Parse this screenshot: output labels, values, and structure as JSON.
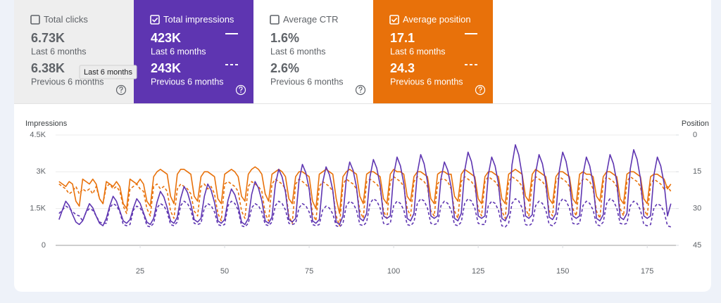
{
  "cards": [
    {
      "label": "Total clicks",
      "checked": false,
      "color": "#eeeeee",
      "current": {
        "value": "6.73K",
        "period": "Last 6 months"
      },
      "previous": {
        "value": "6.38K",
        "period": "Previous 6 months"
      }
    },
    {
      "label": "Total impressions",
      "checked": true,
      "color": "#5e35b1",
      "current": {
        "value": "423K",
        "period": "Last 6 months"
      },
      "previous": {
        "value": "243K",
        "period": "Previous 6 months"
      }
    },
    {
      "label": "Average CTR",
      "checked": false,
      "color": "#ffffff",
      "current": {
        "value": "1.6%",
        "period": "Last 6 months"
      },
      "previous": {
        "value": "2.6%",
        "period": "Previous 6 months"
      }
    },
    {
      "label": "Average position",
      "checked": true,
      "color": "#e8710a",
      "current": {
        "value": "17.1",
        "period": "Last 6 months"
      },
      "previous": {
        "value": "24.3",
        "period": "Previous 6 months"
      }
    }
  ],
  "tooltip": "Last 6 months",
  "chart_data": {
    "type": "line",
    "y_label": "Impressions",
    "y2_label": "Position",
    "xlim": [
      0,
      183.5
    ],
    "xticks": [
      25,
      50,
      75,
      100,
      125,
      150,
      175
    ],
    "ylim": [
      0,
      4500
    ],
    "yticks": [
      0,
      {
        "value": 1500,
        "label": "1.5K"
      },
      {
        "value": 3000,
        "label": "3K"
      },
      {
        "value": 4500,
        "label": "4.5K"
      }
    ],
    "y2lim": [
      45,
      0
    ],
    "y2ticks": [
      45,
      30,
      15,
      0
    ],
    "grid": true,
    "x": [
      1,
      2,
      3,
      4,
      5,
      6,
      7,
      8,
      9,
      10,
      11,
      12,
      13,
      14,
      15,
      16,
      17,
      18,
      19,
      20,
      21,
      22,
      23,
      24,
      25,
      26,
      27,
      28,
      29,
      30,
      31,
      32,
      33,
      34,
      35,
      36,
      37,
      38,
      39,
      40,
      41,
      42,
      43,
      44,
      45,
      46,
      47,
      48,
      49,
      50,
      51,
      52,
      53,
      54,
      55,
      56,
      57,
      58,
      59,
      60,
      61,
      62,
      63,
      64,
      65,
      66,
      67,
      68,
      69,
      70,
      71,
      72,
      73,
      74,
      75,
      76,
      77,
      78,
      79,
      80,
      81,
      82,
      83,
      84,
      85,
      86,
      87,
      88,
      89,
      90,
      91,
      92,
      93,
      94,
      95,
      96,
      97,
      98,
      99,
      100,
      101,
      102,
      103,
      104,
      105,
      106,
      107,
      108,
      109,
      110,
      111,
      112,
      113,
      114,
      115,
      116,
      117,
      118,
      119,
      120,
      121,
      122,
      123,
      124,
      125,
      126,
      127,
      128,
      129,
      130,
      131,
      132,
      133,
      134,
      135,
      136,
      137,
      138,
      139,
      140,
      141,
      142,
      143,
      144,
      145,
      146,
      147,
      148,
      149,
      150,
      151,
      152,
      153,
      154,
      155,
      156,
      157,
      158,
      159,
      160,
      161,
      162,
      163,
      164,
      165,
      166,
      167,
      168,
      169,
      170,
      171,
      172,
      173,
      174,
      175,
      176,
      177,
      178,
      179,
      180,
      181,
      182
    ],
    "series": [
      {
        "name": "Total impressions",
        "period": "previous",
        "color": "#5e35b1",
        "dashed": true,
        "axis": "y",
        "values": [
          1300,
          1440,
          1600,
          1520,
          1380,
          1250,
          1200,
          1000,
          1350,
          1500,
          1430,
          1200,
          950,
          900,
          900,
          1530,
          1700,
          1620,
          1360,
          850,
          800,
          850,
          1440,
          1600,
          1520,
          1280,
          800,
          750,
          900,
          1530,
          1700,
          1620,
          1360,
          850,
          800,
          950,
          1620,
          1800,
          1710,
          1440,
          900,
          850,
          900,
          1530,
          1700,
          1620,
          1360,
          850,
          800,
          850,
          1620,
          1800,
          1710,
          1440,
          800,
          750,
          900,
          1530,
          1700,
          1620,
          1360,
          850,
          800,
          950,
          1620,
          1800,
          1710,
          1440,
          900,
          850,
          900,
          1530,
          1700,
          1620,
          1360,
          850,
          800,
          850,
          1440,
          1600,
          1520,
          1280,
          800,
          750,
          900,
          1620,
          1800,
          1710,
          1440,
          850,
          800,
          950,
          1710,
          1900,
          1810,
          1520,
          900,
          850,
          900,
          1620,
          1800,
          1710,
          1440,
          850,
          800,
          950,
          1710,
          1900,
          1810,
          1520,
          900,
          850,
          900,
          1620,
          1800,
          1710,
          1440,
          850,
          800,
          950,
          1710,
          1900,
          1810,
          1520,
          900,
          850,
          850,
          1620,
          1800,
          1710,
          1440,
          800,
          750,
          900,
          1710,
          1900,
          1810,
          1520,
          850,
          800,
          900,
          1620,
          1800,
          1710,
          1440,
          850,
          800,
          950,
          1710,
          1900,
          1810,
          1520,
          900,
          850,
          900,
          1620,
          1800,
          1710,
          1440,
          850,
          800,
          950,
          1710,
          1900,
          1810,
          1520,
          900,
          850,
          900,
          1620,
          1800,
          1710,
          1440,
          850,
          800,
          850,
          1530,
          1700,
          1620,
          1360,
          800,
          750
        ]
      },
      {
        "name": "Average position",
        "period": "previous",
        "color": "#e8710a",
        "dashed": true,
        "axis": "y2",
        "values": [
          20,
          21,
          22,
          24,
          23,
          21,
          24,
          22,
          23,
          22,
          24,
          21,
          26,
          28,
          21,
          20,
          22,
          21,
          23,
          29,
          32,
          22,
          21,
          20,
          22,
          23,
          30,
          33,
          21,
          20,
          22,
          21,
          23,
          31,
          34,
          22,
          20,
          21,
          22,
          24,
          31,
          33,
          21,
          20,
          22,
          21,
          24,
          32,
          35,
          20,
          19,
          20,
          21,
          23,
          31,
          34,
          21,
          19,
          20,
          21,
          23,
          32,
          35,
          20,
          18,
          19,
          20,
          22,
          33,
          36,
          20,
          18,
          19,
          20,
          22,
          32,
          35,
          21,
          19,
          20,
          21,
          23,
          33,
          37,
          20,
          18,
          19,
          20,
          22,
          31,
          34,
          19,
          18,
          19,
          20,
          22,
          31,
          34,
          19,
          17,
          18,
          19,
          21,
          30,
          33,
          19,
          17,
          18,
          19,
          21,
          31,
          33,
          20,
          18,
          18,
          19,
          22,
          31,
          34,
          19,
          17,
          18,
          19,
          21,
          30,
          33,
          19,
          17,
          18,
          19,
          21,
          31,
          34,
          19,
          17,
          18,
          19,
          21,
          30,
          33,
          19,
          17,
          18,
          19,
          21,
          31,
          33,
          19,
          17,
          18,
          19,
          21,
          30,
          33,
          20,
          18,
          18,
          19,
          22,
          31,
          34,
          19,
          17,
          18,
          19,
          21,
          30,
          33,
          19,
          17,
          18,
          19,
          21,
          30,
          33,
          20,
          18,
          19,
          20,
          22,
          21,
          23
        ]
      },
      {
        "name": "Average position",
        "period": "current",
        "color": "#e8710a",
        "dashed": false,
        "axis": "y2",
        "values": [
          19,
          20,
          21,
          19,
          20,
          27,
          29,
          18,
          19,
          20,
          18,
          20,
          26,
          28,
          19,
          20,
          21,
          19,
          21,
          28,
          30,
          18,
          19,
          20,
          18,
          20,
          27,
          29,
          17,
          15,
          14,
          15,
          16,
          25,
          28,
          16,
          14,
          14,
          15,
          16,
          25,
          27,
          17,
          15,
          15,
          16,
          17,
          26,
          28,
          16,
          15,
          14,
          15,
          17,
          25,
          27,
          16,
          14,
          13,
          14,
          16,
          24,
          27,
          16,
          15,
          14,
          15,
          17,
          26,
          28,
          17,
          15,
          15,
          16,
          17,
          27,
          30,
          16,
          15,
          14,
          15,
          16,
          26,
          32,
          17,
          15,
          14,
          15,
          16,
          25,
          28,
          16,
          15,
          15,
          16,
          17,
          26,
          28,
          16,
          14,
          15,
          15,
          16,
          25,
          27,
          17,
          15,
          15,
          16,
          17,
          26,
          28,
          16,
          15,
          15,
          16,
          16,
          25,
          27,
          16,
          14,
          15,
          16,
          17,
          26,
          28,
          17,
          15,
          15,
          16,
          17,
          26,
          28,
          16,
          15,
          14,
          15,
          16,
          25,
          27,
          16,
          14,
          15,
          16,
          17,
          26,
          28,
          17,
          15,
          15,
          16,
          17,
          26,
          28,
          16,
          15,
          16,
          16,
          17,
          25,
          27,
          17,
          15,
          15,
          16,
          17,
          26,
          28,
          16,
          15,
          15,
          16,
          17,
          26,
          28,
          17,
          16,
          16,
          17,
          18,
          22,
          20
        ]
      },
      {
        "name": "Total impressions",
        "period": "current",
        "color": "#5e35b1",
        "dashed": false,
        "axis": "y",
        "values": [
          1050,
          1440,
          1800,
          1620,
          1260,
          950,
          850,
          1000,
          1360,
          1700,
          1530,
          1190,
          900,
          800,
          1100,
          1600,
          2000,
          1800,
          1400,
          1000,
          900,
          1050,
          1520,
          1900,
          1710,
          1330,
          950,
          850,
          1100,
          1760,
          2200,
          1980,
          1540,
          1000,
          900,
          1150,
          1920,
          2400,
          2160,
          1680,
          1050,
          950,
          1100,
          2000,
          2500,
          2250,
          1750,
          1000,
          900,
          1050,
          1840,
          2300,
          2070,
          1610,
          950,
          850,
          1100,
          2080,
          2600,
          2340,
          1820,
          1000,
          900,
          1150,
          2480,
          3100,
          2790,
          2170,
          1050,
          950,
          1100,
          2640,
          3300,
          2970,
          2310,
          1000,
          900,
          1050,
          2560,
          3200,
          2880,
          2240,
          950,
          850,
          1200,
          2720,
          3400,
          3060,
          2380,
          1100,
          1000,
          1300,
          2800,
          3500,
          3150,
          2450,
          1200,
          1100,
          1200,
          2880,
          3600,
          3240,
          2520,
          1100,
          1000,
          1300,
          2960,
          3700,
          3330,
          2590,
          1200,
          1100,
          1200,
          2720,
          3400,
          3060,
          2380,
          1100,
          1000,
          1300,
          3040,
          3800,
          3420,
          2660,
          1200,
          1100,
          1200,
          2880,
          3600,
          3240,
          2520,
          1100,
          1000,
          1300,
          3280,
          4100,
          3690,
          2870,
          1200,
          1100,
          1250,
          2960,
          3700,
          3330,
          2590,
          1150,
          1050,
          1300,
          3040,
          3800,
          3420,
          2660,
          1200,
          1100,
          1200,
          2880,
          3600,
          3240,
          2520,
          1100,
          1000,
          1250,
          2960,
          3700,
          3330,
          2590,
          1150,
          1050,
          1300,
          3120,
          3900,
          3510,
          2730,
          1200,
          1100,
          1200,
          2880,
          3600,
          3240,
          2520,
          1200,
          1700
        ]
      }
    ]
  }
}
